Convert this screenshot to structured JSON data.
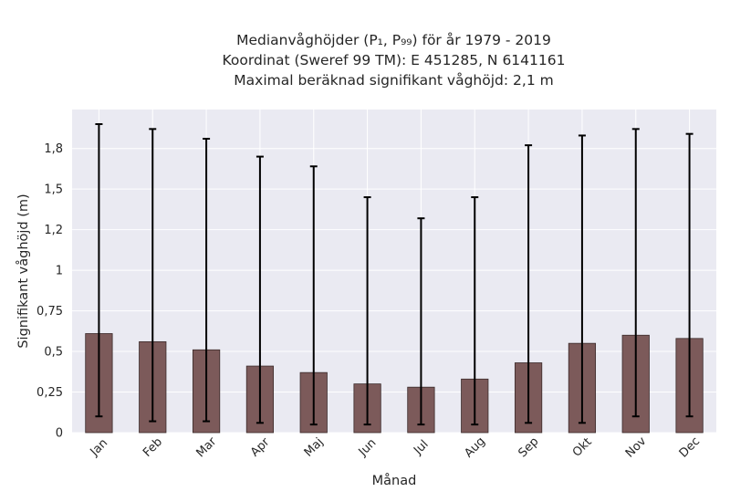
{
  "chart_data": {
    "type": "bar",
    "title_lines": [
      "Medianvåghöjder (P₁, P₉₉) för år 1979 - 2019",
      "Koordinat (Sweref 99 TM): E 451285, N 6141161",
      "Maximal beräknad signifikant våghöjd: 2,1 m"
    ],
    "xlabel": "Månad",
    "ylabel": "Signifikant våghöjd (m)",
    "categories": [
      "Jan",
      "Feb",
      "Mar",
      "Apr",
      "Maj",
      "Jun",
      "Jul",
      "Aug",
      "Sep",
      "Okt",
      "Nov",
      "Dec"
    ],
    "series": [
      {
        "values": [
          0.61,
          0.56,
          0.51,
          0.41,
          0.37,
          0.3,
          0.28,
          0.33,
          0.43,
          0.55,
          0.6,
          0.58
        ],
        "lower": [
          0.1,
          0.07,
          0.07,
          0.06,
          0.05,
          0.05,
          0.05,
          0.05,
          0.06,
          0.06,
          0.1,
          0.1
        ],
        "upper": [
          1.9,
          1.87,
          1.81,
          1.7,
          1.64,
          1.45,
          1.32,
          1.45,
          1.77,
          1.83,
          1.87,
          1.84
        ]
      }
    ],
    "yticks": [
      0,
      0.25,
      0.5,
      0.75,
      1,
      1.25,
      1.5,
      1.75
    ],
    "ytick_labels": [
      "0",
      "0,25",
      "0,5",
      "0,75",
      "1",
      "1,2",
      "1,5",
      "1,8"
    ],
    "ylim": [
      0,
      1.99
    ],
    "grid": true,
    "colors": {
      "bar": "#7c5a5a",
      "bar_edge": "#3a2a2a",
      "errorbar": "#000000",
      "plot_bg": "#eaeaf2",
      "grid": "#ffffff"
    }
  }
}
